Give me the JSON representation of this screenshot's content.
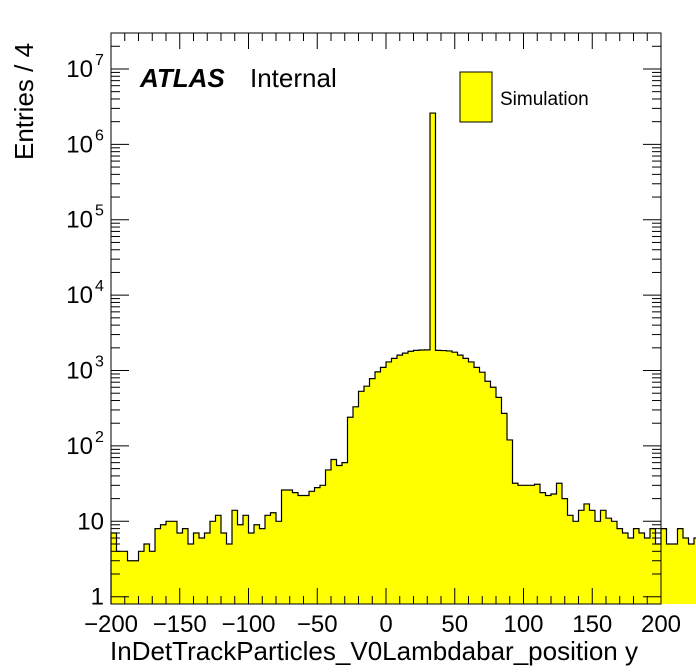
{
  "chart_data": {
    "type": "bar",
    "style": "histogram",
    "xlabel": "InDetTrackParticles_V0Lambdabar_position y",
    "ylabel": "Entries / 4",
    "xlim": [
      -200,
      200
    ],
    "ylim": [
      0.8,
      30000000
    ],
    "yscale": "log",
    "bin_width": 4,
    "x_start": -200,
    "fill_color": "#ffff00",
    "line_color": "#000000",
    "x_ticks": [
      -200,
      -150,
      -100,
      -50,
      0,
      50,
      100,
      150,
      200
    ],
    "x_tick_labels": [
      "−200",
      "−150",
      "−100",
      "−50",
      "0",
      "50",
      "100",
      "150",
      "200"
    ],
    "y_ticks": [
      {
        "value": 1,
        "base": "1",
        "exp": ""
      },
      {
        "value": 10,
        "base": "10",
        "exp": ""
      },
      {
        "value": 100,
        "base": "10",
        "exp": "2"
      },
      {
        "value": 1000,
        "base": "10",
        "exp": "3"
      },
      {
        "value": 10000,
        "base": "10",
        "exp": "4"
      },
      {
        "value": 100000,
        "base": "10",
        "exp": "5"
      },
      {
        "value": 1000000,
        "base": "10",
        "exp": "6"
      },
      {
        "value": 10000000,
        "base": "10",
        "exp": "7"
      }
    ],
    "series": [
      {
        "name": "Simulation",
        "values": [
          7,
          4,
          4,
          3,
          3,
          4,
          5,
          4,
          8,
          9,
          10,
          10,
          7,
          8,
          5,
          7,
          6,
          7,
          10,
          12,
          7,
          5,
          14,
          9,
          12,
          7,
          9,
          8,
          12,
          13,
          10,
          26,
          26,
          24,
          22,
          22,
          25,
          28,
          30,
          48,
          66,
          55,
          60,
          240,
          330,
          530,
          620,
          780,
          960,
          1100,
          1300,
          1450,
          1600,
          1700,
          1800,
          1850,
          1870,
          1880,
          2600000,
          1850,
          1840,
          1820,
          1750,
          1600,
          1450,
          1300,
          1100,
          950,
          720,
          600,
          440,
          270,
          120,
          32,
          30,
          30,
          30,
          31,
          24,
          22,
          23,
          32,
          20,
          12,
          10,
          14,
          17,
          14,
          10,
          14,
          11,
          10,
          8,
          7,
          6,
          8,
          7,
          6,
          8,
          5,
          8,
          5,
          5,
          8,
          6,
          5,
          6,
          10,
          8
        ]
      }
    ],
    "legend": {
      "position": "top-right",
      "entries": [
        "Simulation"
      ]
    },
    "annotation": {
      "brand": "ATLAS",
      "status": "Internal"
    }
  }
}
